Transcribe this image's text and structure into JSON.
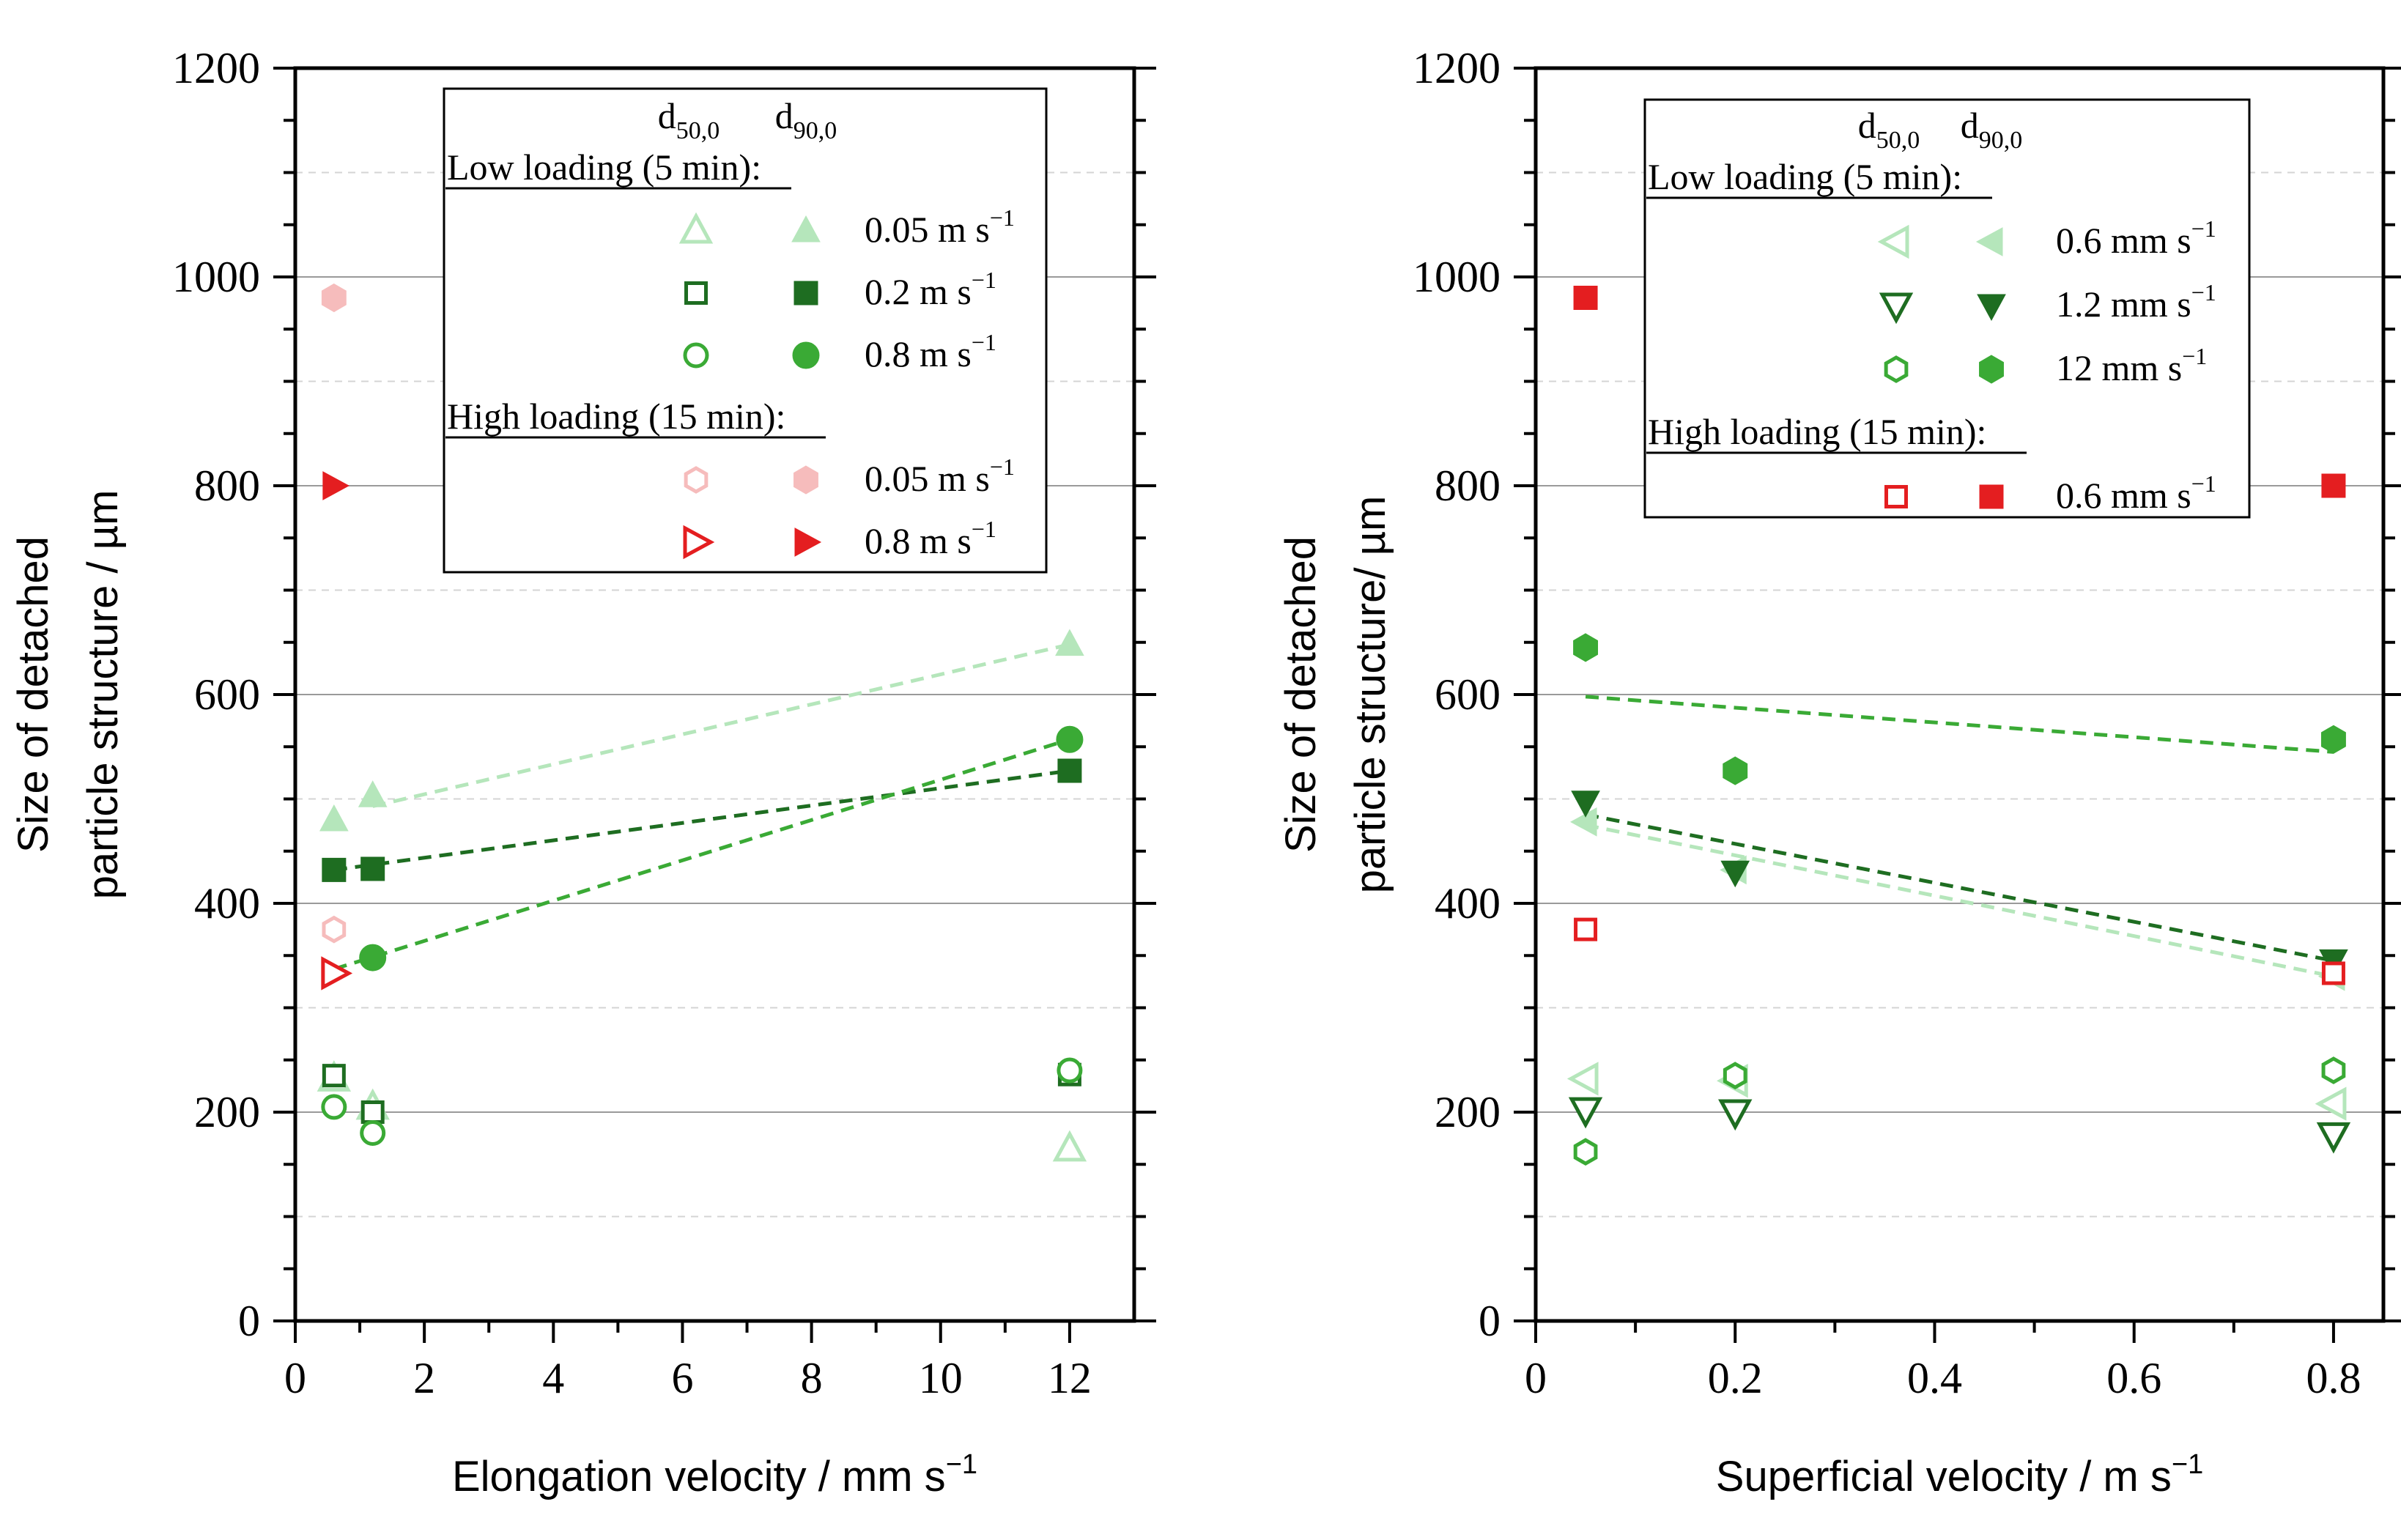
{
  "chart_data": [
    {
      "type": "scatter",
      "xlabel": "Elongation velocity / mm s",
      "xlabel_sup": "−1",
      "ylabel_line1": "Size of detached",
      "ylabel_line2": "particle structure / µm",
      "xlim": [
        0,
        13
      ],
      "ylim": [
        0,
        1200
      ],
      "xticks": [
        0,
        2,
        4,
        6,
        8,
        10,
        12
      ],
      "xtick_labels": [
        "0",
        "2",
        "4",
        "6",
        "8",
        "10",
        "12"
      ],
      "yticks": [
        0,
        200,
        400,
        600,
        800,
        1000,
        1200
      ],
      "ytick_labels": [
        "0",
        "200",
        "400",
        "600",
        "800",
        "1000",
        "1200"
      ],
      "grid_major": [
        200,
        400,
        600,
        800,
        1000
      ],
      "grid_minor": [
        100,
        300,
        500,
        700,
        900,
        1100
      ],
      "legend": {
        "position": "top-right",
        "col_header_1": "d",
        "col_header_1_sub": "50,0",
        "col_header_2": "d",
        "col_header_2_sub": "90,0",
        "groups": [
          {
            "heading": "Low loading (5 min):",
            "entries": [
              {
                "label": "0.05 m s",
                "sup": "−1",
                "marker_d50": "triangle-up-open",
                "marker_d90": "triangle-up",
                "color": "#b5e6bb"
              },
              {
                "label": "0.2 m s",
                "sup": "−1",
                "marker_d50": "square-open",
                "marker_d90": "square",
                "color": "#1e6d21"
              },
              {
                "label": "0.8 m s",
                "sup": "−1",
                "marker_d50": "circle-open",
                "marker_d90": "circle",
                "color": "#3aaa35"
              }
            ]
          },
          {
            "heading": "High loading (15 min):",
            "entries": [
              {
                "label": "0.05 m s",
                "sup": "−1",
                "marker_d50": "hexagon-open",
                "marker_d90": "hexagon",
                "color": "#f6bcbc"
              },
              {
                "label": "0.8 m s",
                "sup": "−1",
                "marker_d50": "triangle-right-open",
                "marker_d90": "triangle-right",
                "color": "#e41e20"
              }
            ]
          }
        ]
      },
      "series": [
        {
          "name": "Low 0.05 m/s d50,0",
          "marker": "triangle-up-open",
          "color": "#b5e6bb",
          "x": [
            0.6,
            1.2,
            12
          ],
          "y": [
            232,
            205,
            165
          ]
        },
        {
          "name": "Low 0.05 m/s d90,0",
          "marker": "triangle-up",
          "color": "#b5e6bb",
          "x": [
            0.6,
            1.2,
            12
          ],
          "y": [
            480,
            503,
            648
          ]
        },
        {
          "name": "Low 0.2 m/s d50,0",
          "marker": "square-open",
          "color": "#1e6d21",
          "x": [
            0.6,
            1.2,
            12
          ],
          "y": [
            235,
            200,
            236
          ]
        },
        {
          "name": "Low 0.2 m/s d90,0",
          "marker": "square",
          "color": "#1e6d21",
          "x": [
            0.6,
            1.2,
            12
          ],
          "y": [
            432,
            433,
            527
          ]
        },
        {
          "name": "Low 0.8 m/s d50,0",
          "marker": "circle-open",
          "color": "#3aaa35",
          "x": [
            0.6,
            1.2,
            12
          ],
          "y": [
            205,
            180,
            240
          ]
        },
        {
          "name": "Low 0.8 m/s d90,0",
          "marker": "circle",
          "color": "#3aaa35",
          "x": [
            1.2,
            12
          ],
          "y": [
            348,
            557
          ]
        },
        {
          "name": "High 0.05 m/s d50,0",
          "marker": "hexagon-open",
          "color": "#f6bcbc",
          "x": [
            0.6
          ],
          "y": [
            375
          ]
        },
        {
          "name": "High 0.05 m/s d90,0",
          "marker": "hexagon",
          "color": "#f6bcbc",
          "x": [
            0.6
          ],
          "y": [
            980
          ]
        },
        {
          "name": "High 0.8 m/s d50,0",
          "marker": "triangle-right-open",
          "color": "#e41e20",
          "x": [
            0.6
          ],
          "y": [
            333
          ]
        },
        {
          "name": "High 0.8 m/s d90,0",
          "marker": "triangle-right",
          "color": "#e41e20",
          "x": [
            0.6
          ],
          "y": [
            800
          ]
        }
      ],
      "trendlines": [
        {
          "color": "#b5e6bb",
          "x": [
            1.2,
            12
          ],
          "y": [
            493,
            648
          ]
        },
        {
          "color": "#1e6d21",
          "x": [
            0.6,
            12
          ],
          "y": [
            432,
            527
          ]
        },
        {
          "color": "#3aaa35",
          "x": [
            0.6,
            12
          ],
          "y": [
            337,
            557
          ]
        }
      ]
    },
    {
      "type": "scatter",
      "xlabel": "Superficial velocity / m s",
      "xlabel_sup": "−1",
      "ylabel_line1": "Size of detached",
      "ylabel_line2": "particle structure/ µm",
      "xlim": [
        0,
        0.85
      ],
      "ylim": [
        0,
        1200
      ],
      "xticks": [
        0,
        0.2,
        0.4,
        0.6,
        0.8
      ],
      "xtick_labels": [
        "0",
        "0.2",
        "0.4",
        "0.6",
        "0.8"
      ],
      "yticks": [
        0,
        200,
        400,
        600,
        800,
        1000,
        1200
      ],
      "ytick_labels": [
        "0",
        "200",
        "400",
        "600",
        "800",
        "1000",
        "1200"
      ],
      "grid_major": [
        200,
        400,
        600,
        800,
        1000
      ],
      "grid_minor": [
        100,
        300,
        500,
        700,
        900,
        1100
      ],
      "legend": {
        "position": "top-right",
        "col_header_1": "d",
        "col_header_1_sub": "50,0",
        "col_header_2": "d",
        "col_header_2_sub": "90,0",
        "groups": [
          {
            "heading": "Low loading (5 min):",
            "entries": [
              {
                "label": "0.6 mm s",
                "sup": "−1",
                "marker_d50": "triangle-left-open",
                "marker_d90": "triangle-left",
                "color": "#b5e6bb"
              },
              {
                "label": "1.2 mm s",
                "sup": "−1",
                "marker_d50": "triangle-down-open",
                "marker_d90": "triangle-down",
                "color": "#1e6d21"
              },
              {
                "label": "12 mm s",
                "sup": "−1",
                "marker_d50": "hexagon-open",
                "marker_d90": "hexagon",
                "color": "#3aaa35"
              }
            ]
          },
          {
            "heading": "High loading (15 min):",
            "entries": [
              {
                "label": "0.6 mm s",
                "sup": "−1",
                "marker_d50": "square-open",
                "marker_d90": "square",
                "color": "#e41e20"
              }
            ]
          }
        ]
      },
      "series": [
        {
          "name": "Low 0.6 mm/s d50,0",
          "marker": "triangle-left-open",
          "color": "#b5e6bb",
          "x": [
            0.05,
            0.2,
            0.8
          ],
          "y": [
            232,
            230,
            208
          ]
        },
        {
          "name": "Low 0.6 mm/s d90,0",
          "marker": "triangle-left",
          "color": "#b5e6bb",
          "x": [
            0.05,
            0.2,
            0.8
          ],
          "y": [
            478,
            432,
            330
          ]
        },
        {
          "name": "Low 1.2 mm/s d50,0",
          "marker": "triangle-down-open",
          "color": "#1e6d21",
          "x": [
            0.05,
            0.2,
            0.8
          ],
          "y": [
            202,
            200,
            178
          ]
        },
        {
          "name": "Low 1.2 mm/s d90,0",
          "marker": "triangle-down",
          "color": "#1e6d21",
          "x": [
            0.05,
            0.2,
            0.8
          ],
          "y": [
            497,
            430,
            345
          ]
        },
        {
          "name": "Low 12 mm/s d50,0",
          "marker": "hexagon-open",
          "color": "#3aaa35",
          "x": [
            0.05,
            0.2,
            0.8
          ],
          "y": [
            162,
            235,
            240
          ]
        },
        {
          "name": "Low 12 mm/s d90,0",
          "marker": "hexagon",
          "color": "#3aaa35",
          "x": [
            0.05,
            0.2,
            0.8
          ],
          "y": [
            645,
            527,
            557
          ]
        },
        {
          "name": "High 0.6 mm/s d50,0",
          "marker": "square-open",
          "color": "#e41e20",
          "x": [
            0.05,
            0.8
          ],
          "y": [
            375,
            333
          ]
        },
        {
          "name": "High 0.6 mm/s d90,0",
          "marker": "square",
          "color": "#e41e20",
          "x": [
            0.05,
            0.8
          ],
          "y": [
            980,
            800
          ]
        }
      ],
      "trendlines": [
        {
          "color": "#b5e6bb",
          "x": [
            0.05,
            0.8
          ],
          "y": [
            475,
            330
          ]
        },
        {
          "color": "#1e6d21",
          "x": [
            0.05,
            0.8
          ],
          "y": [
            485,
            345
          ]
        },
        {
          "color": "#3aaa35",
          "x": [
            0.05,
            0.8
          ],
          "y": [
            598,
            545
          ]
        }
      ]
    }
  ]
}
